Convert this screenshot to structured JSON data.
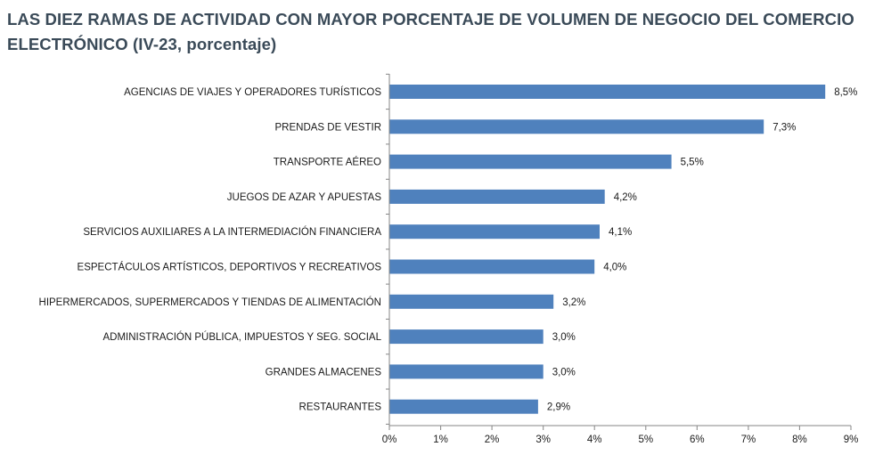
{
  "chart_data": {
    "type": "bar",
    "orientation": "horizontal",
    "title": "LAS DIEZ RAMAS DE ACTIVIDAD CON MAYOR PORCENTAJE DE VOLUMEN DE NEGOCIO DEL COMERCIO ELECTRÓNICO (IV-23, porcentaje)",
    "categories": [
      "AGENCIAS DE VIAJES Y OPERADORES TURÍSTICOS",
      "PRENDAS DE VESTIR",
      "TRANSPORTE AÉREO",
      "JUEGOS DE AZAR Y APUESTAS",
      "SERVICIOS AUXILIARES A LA INTERMEDIACIÓN FINANCIERA",
      "ESPECTÁCULOS ARTÍSTICOS, DEPORTIVOS Y RECREATIVOS",
      "HIPERMERCADOS, SUPERMERCADOS Y TIENDAS DE ALIMENTACIÓN",
      "ADMINISTRACIÓN PÚBLICA, IMPUESTOS Y SEG. SOCIAL",
      "GRANDES ALMACENES",
      "RESTAURANTES"
    ],
    "values": [
      8.5,
      7.3,
      5.5,
      4.2,
      4.1,
      4.0,
      3.2,
      3.0,
      3.0,
      2.9
    ],
    "value_labels": [
      "8,5%",
      "7,3%",
      "5,5%",
      "4,2%",
      "4,1%",
      "4,0%",
      "3,2%",
      "3,0%",
      "3,0%",
      "2,9%"
    ],
    "xlim": [
      0,
      9
    ],
    "x_ticks": [
      0,
      1,
      2,
      3,
      4,
      5,
      6,
      7,
      8,
      9
    ],
    "x_tick_labels": [
      "0%",
      "1%",
      "2%",
      "3%",
      "4%",
      "5%",
      "6%",
      "7%",
      "8%",
      "9%"
    ],
    "xlabel": "",
    "ylabel": "",
    "grid": false,
    "legend": "none",
    "bar_color": "#4f81bd",
    "title_color": "#3a4a58",
    "axis_color": "#868686"
  }
}
